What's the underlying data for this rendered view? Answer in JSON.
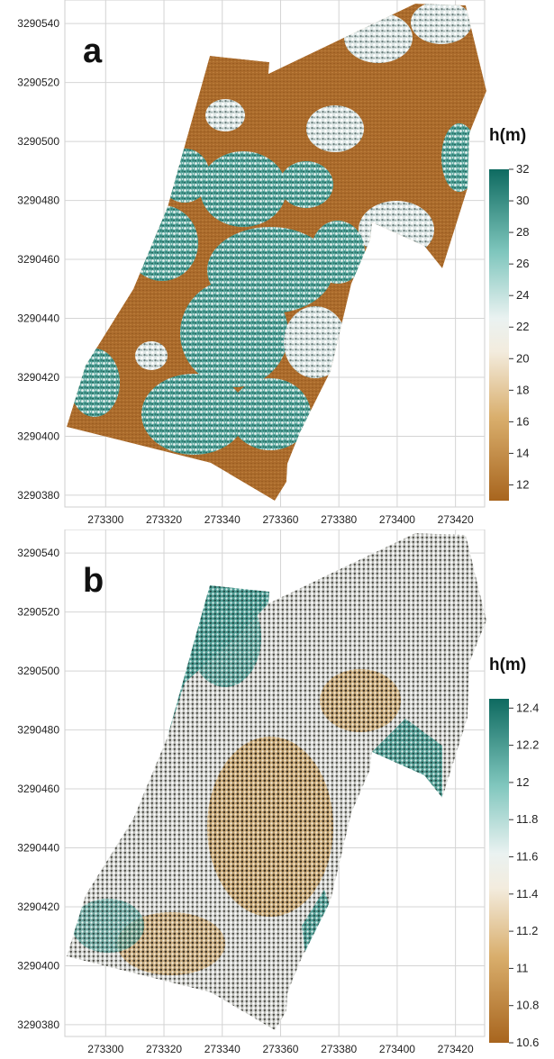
{
  "chart_data": [
    {
      "type": "heatmap",
      "panel_label": "a",
      "colorbar": {
        "title": "h(m)",
        "min": 11,
        "max": 32,
        "ticks": [
          12,
          14,
          16,
          18,
          20,
          22,
          24,
          26,
          28,
          30,
          32
        ]
      },
      "x_ticks": [
        273300,
        273320,
        273340,
        273360,
        273380,
        273400,
        273420
      ],
      "y_ticks": [
        3290380,
        3290400,
        3290420,
        3290440,
        3290460,
        3290480,
        3290500,
        3290520,
        3290540
      ],
      "xlim": [
        273286,
        273430
      ],
      "ylim": [
        3290376,
        3290548
      ],
      "grid": true,
      "colors": {
        "low": "#a8651e",
        "mid": "#f2f0ec",
        "high": "#0e6a60"
      }
    },
    {
      "type": "heatmap",
      "panel_label": "b",
      "colorbar": {
        "title": "h(m)",
        "min": 10.6,
        "max": 12.45,
        "ticks": [
          10.6,
          10.8,
          11,
          11.2,
          11.4,
          11.6,
          11.8,
          12,
          12.2,
          12.4
        ]
      },
      "x_ticks": [
        273300,
        273320,
        273340,
        273360,
        273380,
        273400,
        273420
      ],
      "y_ticks": [
        3290380,
        3290400,
        3290420,
        3290440,
        3290460,
        3290480,
        3290500,
        3290520,
        3290540
      ],
      "xlim": [
        273286,
        273430
      ],
      "ylim": [
        3290376,
        3290548
      ],
      "grid": true,
      "colors": {
        "low": "#a8651e",
        "mid": "#f2f0ec",
        "high": "#0e6a60"
      }
    }
  ]
}
